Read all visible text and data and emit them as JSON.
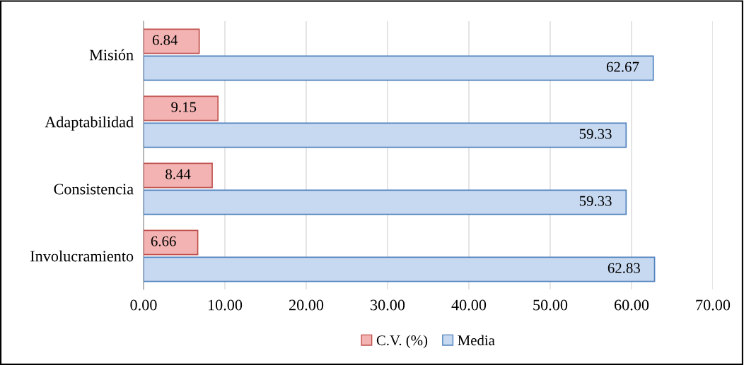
{
  "chart_data": {
    "type": "bar",
    "orientation": "horizontal",
    "categories": [
      "Misión",
      "Adaptabilidad",
      "Consistencia",
      "Involucramiento"
    ],
    "series": [
      {
        "name": "C.V. (%)",
        "color": "#f2b3b2",
        "values": [
          6.84,
          9.15,
          8.44,
          6.66
        ]
      },
      {
        "name": "Media",
        "color": "#c6d9f1",
        "values": [
          62.67,
          59.33,
          59.33,
          62.83
        ]
      }
    ],
    "xlim": [
      0,
      70
    ],
    "xticks": [
      {
        "value": 0,
        "label": "0.00"
      },
      {
        "value": 10,
        "label": "10.00"
      },
      {
        "value": 20,
        "label": "20.00"
      },
      {
        "value": 30,
        "label": "30.00"
      },
      {
        "value": 40,
        "label": "40.00"
      },
      {
        "value": 50,
        "label": "50.00"
      },
      {
        "value": 60,
        "label": "60.00"
      },
      {
        "value": 70,
        "label": "70.00"
      }
    ],
    "grid": "x",
    "legend": "bottom",
    "data_labels": true
  }
}
